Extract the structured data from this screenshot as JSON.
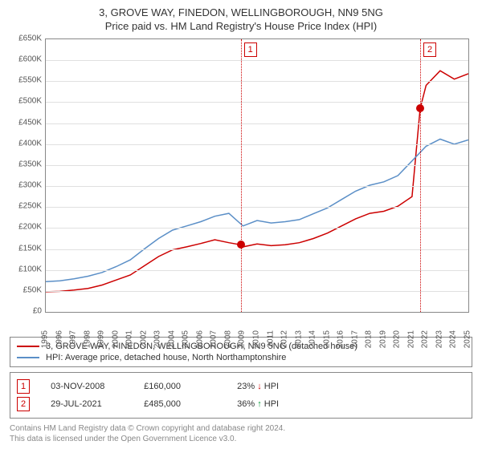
{
  "title": {
    "line1": "3, GROVE WAY, FINEDON, WELLINGBOROUGH, NN9 5NG",
    "line2": "Price paid vs. HM Land Registry's House Price Index (HPI)",
    "fontsize": 13,
    "color": "#333333"
  },
  "chart": {
    "type": "line",
    "background_color": "#ffffff",
    "border_color": "#888888",
    "grid_color": "#e0e0e0",
    "y_axis": {
      "min": 0,
      "max": 650000,
      "tick_step": 50000,
      "ticks": [
        "£0",
        "£50K",
        "£100K",
        "£150K",
        "£200K",
        "£250K",
        "£300K",
        "£350K",
        "£400K",
        "£450K",
        "£500K",
        "£550K",
        "£600K",
        "£650K"
      ],
      "label_fontsize": 10,
      "label_color": "#555555"
    },
    "x_axis": {
      "min": 1995,
      "max": 2025,
      "ticks": [
        "1995",
        "1996",
        "1997",
        "1998",
        "1999",
        "2000",
        "2001",
        "2002",
        "2003",
        "2004",
        "2005",
        "2006",
        "2007",
        "2008",
        "2009",
        "2010",
        "2011",
        "2012",
        "2013",
        "2014",
        "2015",
        "2016",
        "2017",
        "2018",
        "2019",
        "2020",
        "2021",
        "2022",
        "2023",
        "2024",
        "2025"
      ],
      "label_fontsize": 10,
      "label_color": "#555555",
      "label_rotation": -90
    },
    "series": [
      {
        "name": "property",
        "label": "3, GROVE WAY, FINEDON, WELLINGBOROUGH, NN9 5NG (detached house)",
        "color": "#cc0000",
        "line_width": 1.5,
        "data": [
          [
            1995,
            48000
          ],
          [
            1996,
            49000
          ],
          [
            1997,
            52000
          ],
          [
            1998,
            56000
          ],
          [
            1999,
            64000
          ],
          [
            2000,
            76000
          ],
          [
            2001,
            88000
          ],
          [
            2002,
            110000
          ],
          [
            2003,
            132000
          ],
          [
            2004,
            148000
          ],
          [
            2005,
            155000
          ],
          [
            2006,
            163000
          ],
          [
            2007,
            172000
          ],
          [
            2008,
            165000
          ],
          [
            2008.84,
            160000
          ],
          [
            2009,
            155000
          ],
          [
            2010,
            162000
          ],
          [
            2011,
            158000
          ],
          [
            2012,
            160000
          ],
          [
            2013,
            165000
          ],
          [
            2014,
            175000
          ],
          [
            2015,
            188000
          ],
          [
            2016,
            205000
          ],
          [
            2017,
            222000
          ],
          [
            2018,
            235000
          ],
          [
            2019,
            240000
          ],
          [
            2020,
            252000
          ],
          [
            2021,
            275000
          ],
          [
            2021.58,
            485000
          ],
          [
            2022,
            540000
          ],
          [
            2023,
            575000
          ],
          [
            2024,
            555000
          ],
          [
            2025,
            568000
          ]
        ]
      },
      {
        "name": "hpi",
        "label": "HPI: Average price, detached house, North Northamptonshire",
        "color": "#5b8fc7",
        "line_width": 1.5,
        "data": [
          [
            1995,
            72000
          ],
          [
            1996,
            74000
          ],
          [
            1997,
            79000
          ],
          [
            1998,
            85000
          ],
          [
            1999,
            94000
          ],
          [
            2000,
            108000
          ],
          [
            2001,
            124000
          ],
          [
            2002,
            150000
          ],
          [
            2003,
            175000
          ],
          [
            2004,
            195000
          ],
          [
            2005,
            205000
          ],
          [
            2006,
            215000
          ],
          [
            2007,
            228000
          ],
          [
            2008,
            235000
          ],
          [
            2009,
            205000
          ],
          [
            2010,
            218000
          ],
          [
            2011,
            212000
          ],
          [
            2012,
            215000
          ],
          [
            2013,
            220000
          ],
          [
            2014,
            234000
          ],
          [
            2015,
            248000
          ],
          [
            2016,
            268000
          ],
          [
            2017,
            288000
          ],
          [
            2018,
            302000
          ],
          [
            2019,
            310000
          ],
          [
            2020,
            325000
          ],
          [
            2021,
            360000
          ],
          [
            2022,
            395000
          ],
          [
            2023,
            412000
          ],
          [
            2024,
            400000
          ],
          [
            2025,
            410000
          ]
        ]
      }
    ],
    "markers": [
      {
        "id": "1",
        "x": 2008.84,
        "line_color": "#cc0000",
        "badge_border": "#cc0000",
        "badge_bg": "#ffffff",
        "badge_text_color": "#cc0000",
        "dot_y": 160000,
        "dot_color": "#cc0000"
      },
      {
        "id": "2",
        "x": 2021.58,
        "line_color": "#cc0000",
        "badge_border": "#cc0000",
        "badge_bg": "#ffffff",
        "badge_text_color": "#cc0000",
        "dot_y": 485000,
        "dot_color": "#cc0000"
      }
    ]
  },
  "legend": {
    "border_color": "#888888",
    "fontsize": 11,
    "items": [
      {
        "color": "#cc0000",
        "label": "3, GROVE WAY, FINEDON, WELLINGBOROUGH, NN9 5NG (detached house)"
      },
      {
        "color": "#5b8fc7",
        "label": "HPI: Average price, detached house, North Northamptonshire"
      }
    ]
  },
  "transactions": {
    "border_color": "#888888",
    "fontsize": 11,
    "rows": [
      {
        "marker_id": "1",
        "marker_border": "#cc0000",
        "marker_text_color": "#cc0000",
        "date": "03-NOV-2008",
        "price": "£160,000",
        "pct": "23%",
        "arrow": "↓",
        "arrow_color": "#cc0000",
        "suffix": "HPI"
      },
      {
        "marker_id": "2",
        "marker_border": "#cc0000",
        "marker_text_color": "#cc0000",
        "date": "29-JUL-2021",
        "price": "£485,000",
        "pct": "36%",
        "arrow": "↑",
        "arrow_color": "#009933",
        "suffix": "HPI"
      }
    ]
  },
  "footnote": {
    "line1": "Contains HM Land Registry data © Crown copyright and database right 2024.",
    "line2": "This data is licensed under the Open Government Licence v3.0.",
    "color": "#888888",
    "fontsize": 10
  }
}
